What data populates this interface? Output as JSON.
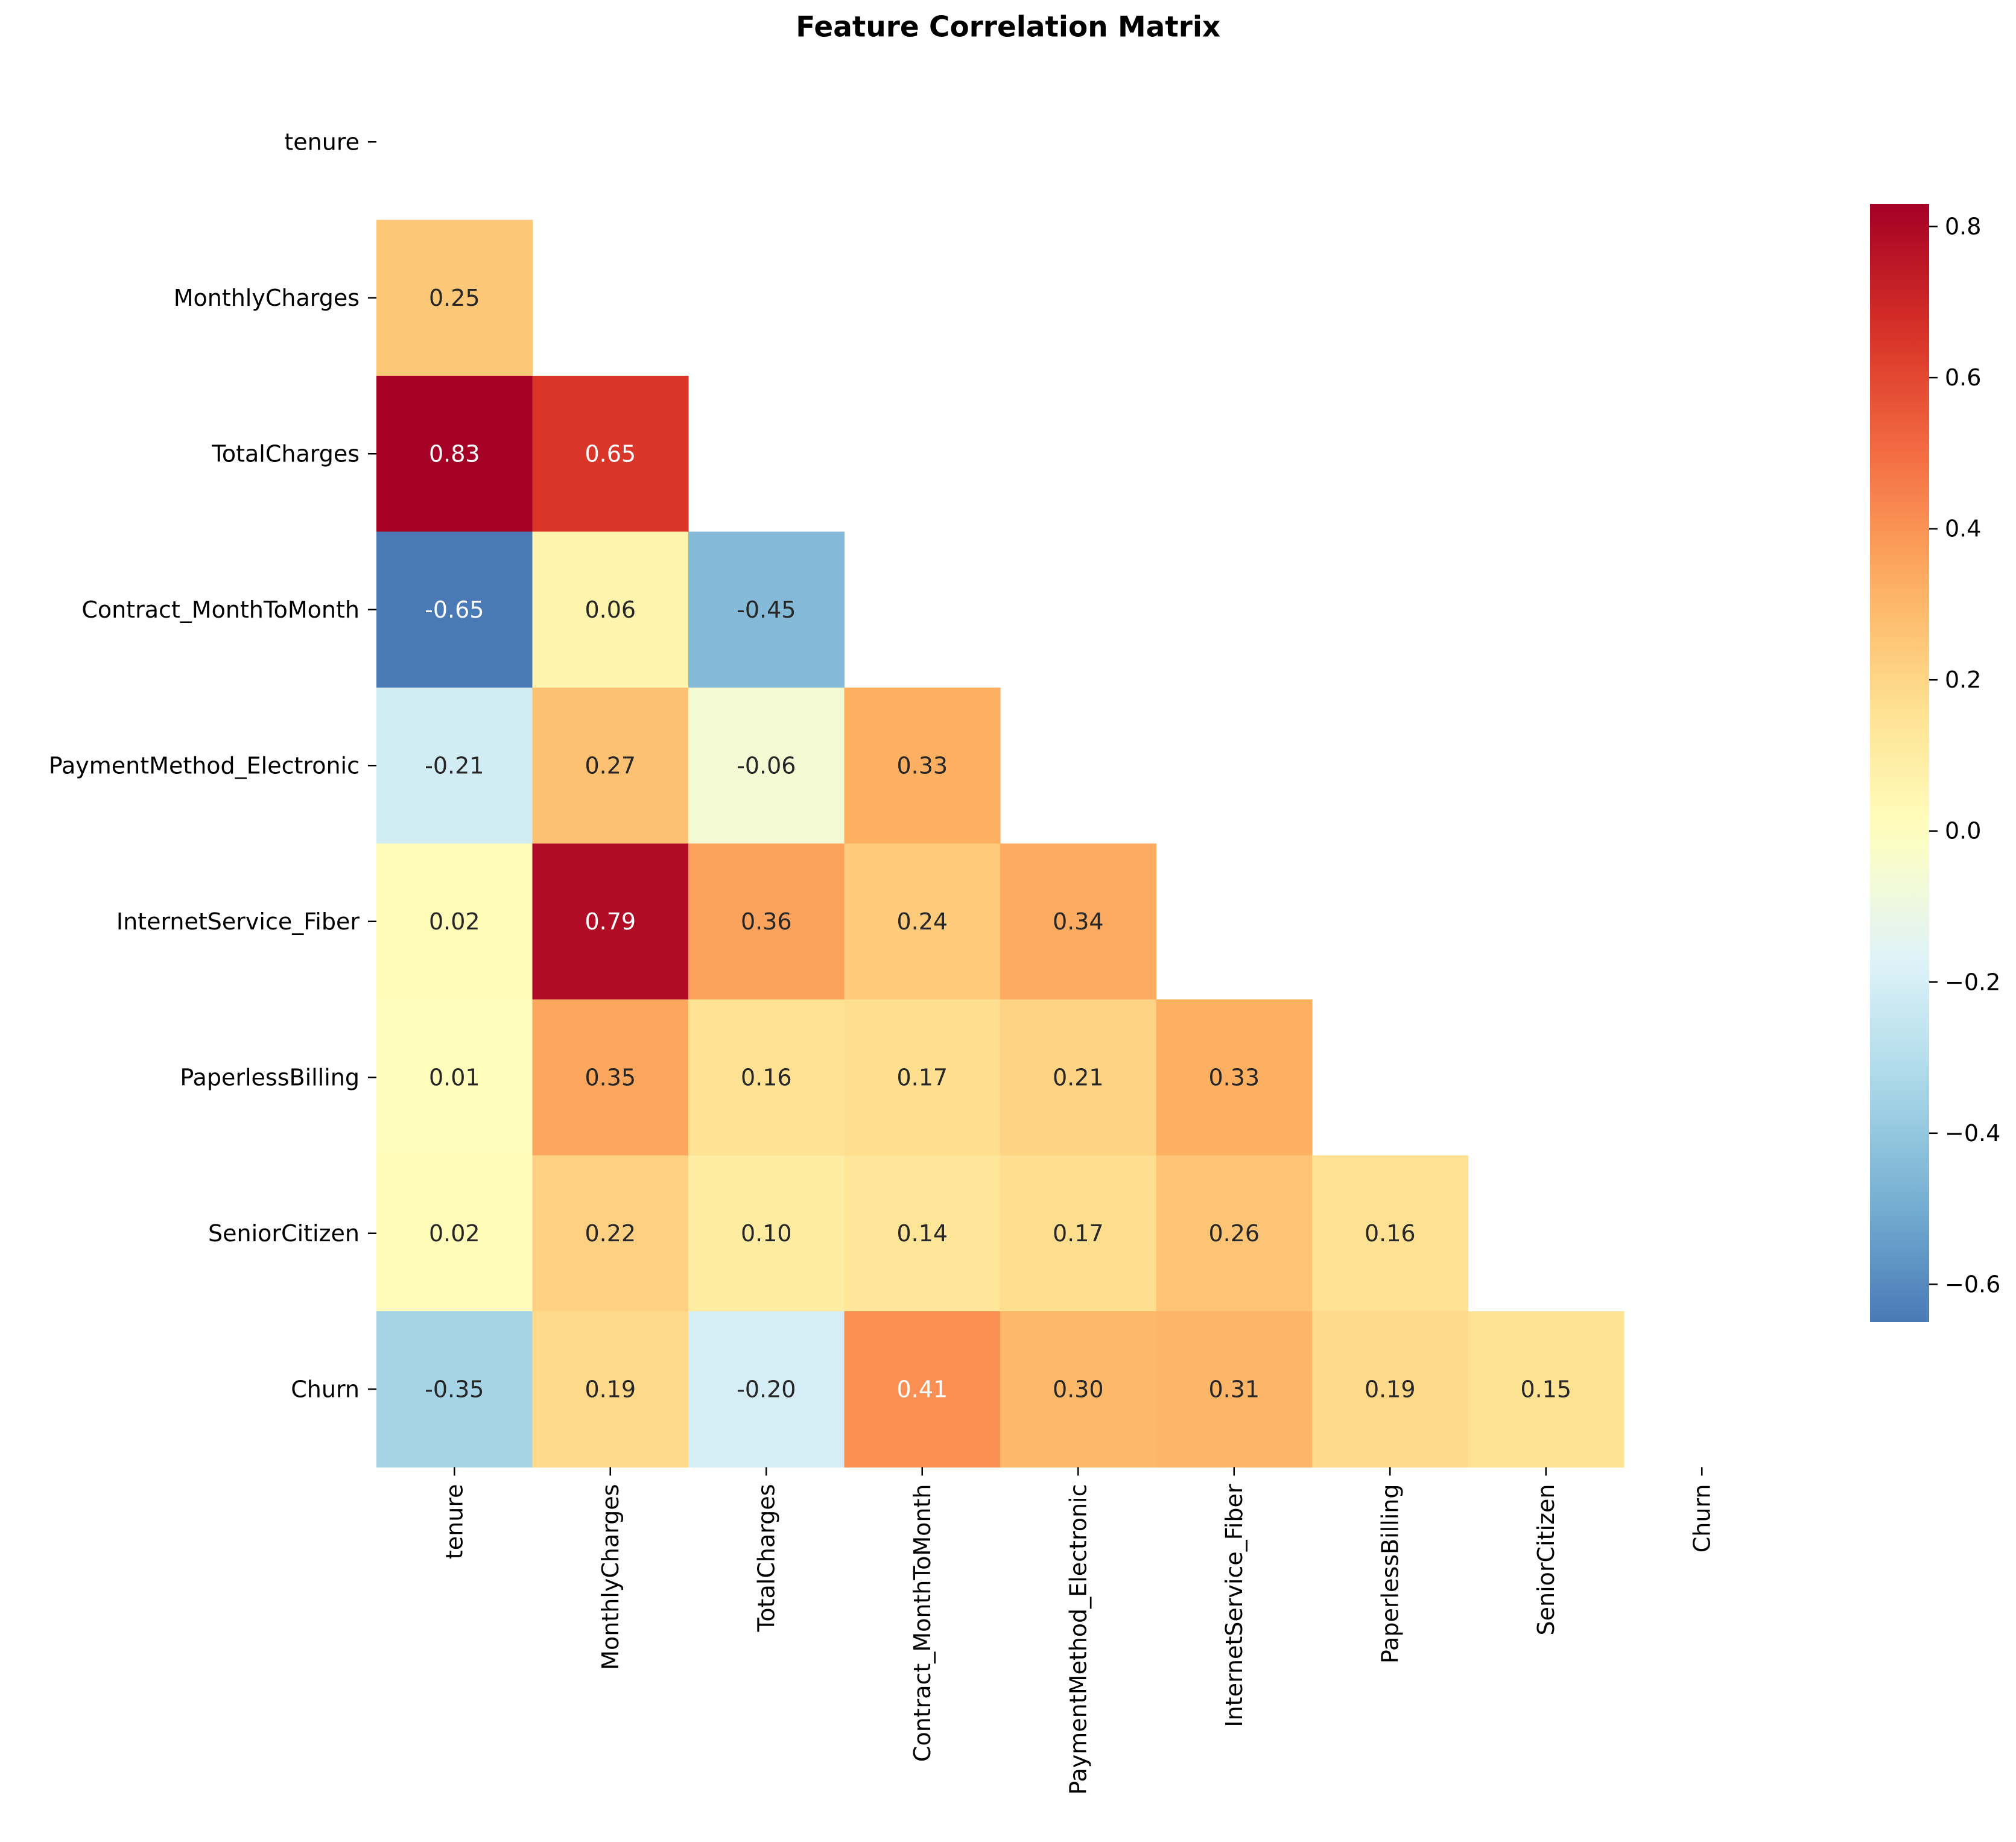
{
  "chart_data": {
    "type": "heatmap",
    "title": "Feature Correlation Matrix",
    "variables": [
      "tenure",
      "MonthlyCharges",
      "TotalCharges",
      "Contract_MonthToMonth",
      "PaymentMethod_Electronic",
      "InternetService_Fiber",
      "PaperlessBilling",
      "SeniorCitizen",
      "Churn"
    ],
    "mask": "upper-triangle-including-diagonal",
    "lower_triangle": [
      {
        "row": "MonthlyCharges",
        "values": [
          0.25
        ]
      },
      {
        "row": "TotalCharges",
        "values": [
          0.83,
          0.65
        ]
      },
      {
        "row": "Contract_MonthToMonth",
        "values": [
          -0.65,
          0.06,
          -0.45
        ]
      },
      {
        "row": "PaymentMethod_Electronic",
        "values": [
          -0.21,
          0.27,
          -0.06,
          0.33
        ]
      },
      {
        "row": "InternetService_Fiber",
        "values": [
          0.02,
          0.79,
          0.36,
          0.24,
          0.34
        ]
      },
      {
        "row": "PaperlessBilling",
        "values": [
          0.01,
          0.35,
          0.16,
          0.17,
          0.21,
          0.33
        ]
      },
      {
        "row": "SeniorCitizen",
        "values": [
          0.02,
          0.22,
          0.1,
          0.14,
          0.17,
          0.26,
          0.16
        ]
      },
      {
        "row": "Churn",
        "values": [
          -0.35,
          0.19,
          -0.2,
          0.41,
          0.3,
          0.31,
          0.19,
          0.15
        ]
      }
    ],
    "annotation_format": "0.00",
    "colormap": "RdYlBu_r",
    "colorbar": {
      "vmin": -0.65,
      "vmax": 0.83,
      "ticks": [
        0.8,
        0.6,
        0.4,
        0.2,
        0.0,
        -0.2,
        -0.4,
        -0.6
      ],
      "tick_labels": [
        "0.8",
        "0.6",
        "0.4",
        "0.2",
        "0.0",
        "−0.2",
        "−0.4",
        "−0.6"
      ]
    },
    "colors": {
      "min": "#4a7ab7",
      "zero": "#fefec0",
      "max": "#a50026"
    }
  }
}
